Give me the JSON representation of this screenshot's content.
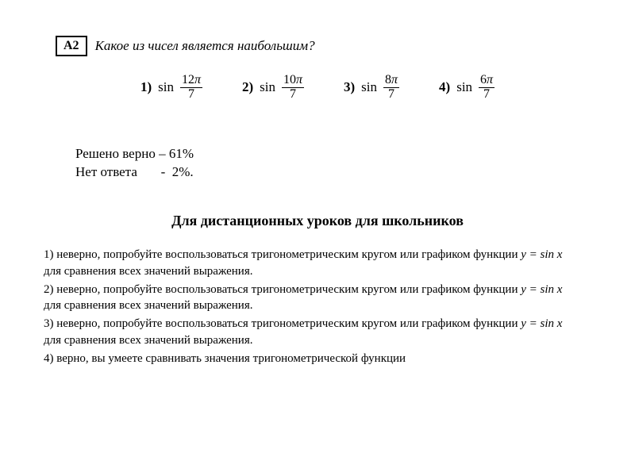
{
  "question": {
    "number": "А2",
    "text": "Какое из чисел является наибольшим?",
    "options": [
      {
        "idx": "1)",
        "func": "sin",
        "num": "12",
        "den": "7"
      },
      {
        "idx": "2)",
        "func": "sin",
        "num": "10",
        "den": "7"
      },
      {
        "idx": "3)",
        "func": "sin",
        "num": "8",
        "den": "7"
      },
      {
        "idx": "4)",
        "func": "sin",
        "num": "6",
        "den": "7"
      }
    ]
  },
  "stats": {
    "correct": "Решено верно – 61%",
    "noanswer": "Нет ответа       -  2%."
  },
  "section_title": "Для дистанционных уроков для школьников",
  "explanations": {
    "pre1": "1) неверно, попробуйте воспользоваться тригонометрическим кругом или графиком функции ",
    "pre2": "2) неверно, попробуйте воспользоваться тригонометрическим кругом или графиком функции ",
    "pre3": "3) неверно, попробуйте воспользоваться тригонометрическим кругом или графиком функции ",
    "eq": "y = sin x",
    "post": " для сравнения всех значений выражения.",
    "e4": "4) верно, вы умеете сравнивать значения тригонометрической функции"
  },
  "colors": {
    "bg": "#ffffff",
    "text": "#000000",
    "border": "#000000"
  }
}
